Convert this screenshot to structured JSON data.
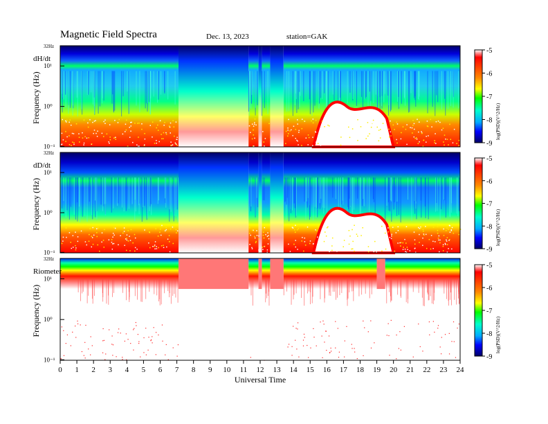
{
  "header": {
    "title": "Magnetic  Field  Spectra",
    "date": "Dec. 13, 2023",
    "station": "station=GAK"
  },
  "chart_data": [
    {
      "type": "heatmap",
      "panel_label": "dH/dt",
      "ylabel": "Frequency  (Hz)",
      "y_scale": "log",
      "y_top_label": "32Hz",
      "y_tick_labels": [
        "10¹",
        "10⁰",
        "10⁻¹"
      ],
      "xlim": [
        0,
        24
      ],
      "data_gaps_ut": [
        [
          7.1,
          11.3
        ],
        [
          11.9,
          12.1
        ],
        [
          12.6,
          13.4
        ]
      ],
      "colorbar": {
        "label": "log(PSD)(V^2/Hz)",
        "range": [
          -9,
          -5
        ],
        "ticks": [
          "-5",
          "-6",
          "-7",
          "-8",
          "-9"
        ]
      }
    },
    {
      "type": "heatmap",
      "panel_label": "dD/dt",
      "ylabel": "Frequency  (Hz)",
      "y_scale": "log",
      "y_top_label": "32Hz",
      "y_tick_labels": [
        "10¹",
        "10⁰",
        "10⁻¹"
      ],
      "xlim": [
        0,
        24
      ],
      "data_gaps_ut": [
        [
          7.1,
          11.3
        ],
        [
          11.9,
          12.1
        ],
        [
          12.6,
          13.4
        ]
      ],
      "colorbar": {
        "label": "log(PSD)(V^2/Hz)",
        "range": [
          -9,
          -5
        ],
        "ticks": [
          "-5",
          "-6",
          "-7",
          "-8",
          "-9"
        ]
      }
    },
    {
      "type": "heatmap",
      "panel_label": "Riometer",
      "ylabel": "Frequency  (Hz)",
      "y_scale": "log",
      "y_top_label": "32Hz",
      "y_tick_labels": [
        "10¹",
        "10⁰",
        "10⁻¹"
      ],
      "xlim": [
        0,
        24
      ],
      "data_gaps_ut": [
        [
          7.1,
          11.3
        ],
        [
          11.9,
          12.1
        ],
        [
          12.6,
          13.4
        ],
        [
          19.0,
          19.5
        ]
      ],
      "colorbar": {
        "label": "log(PSD)(V^2/Hz)",
        "range": [
          -9,
          -5
        ],
        "ticks": [
          "-5",
          "-6",
          "-7",
          "-8",
          "-9"
        ]
      }
    }
  ],
  "xaxis": {
    "label": "Universal Time",
    "ticks": [
      "0",
      "1",
      "2",
      "3",
      "4",
      "5",
      "6",
      "7",
      "8",
      "9",
      "10",
      "11",
      "12",
      "13",
      "14",
      "15",
      "16",
      "17",
      "18",
      "19",
      "20",
      "21",
      "22",
      "23",
      "24"
    ]
  },
  "colors": {
    "colormap": [
      "#000066",
      "#0000ff",
      "#00aaff",
      "#00ffcc",
      "#00ff00",
      "#ffff00",
      "#ff8800",
      "#ff0000",
      "#ffffff"
    ]
  }
}
